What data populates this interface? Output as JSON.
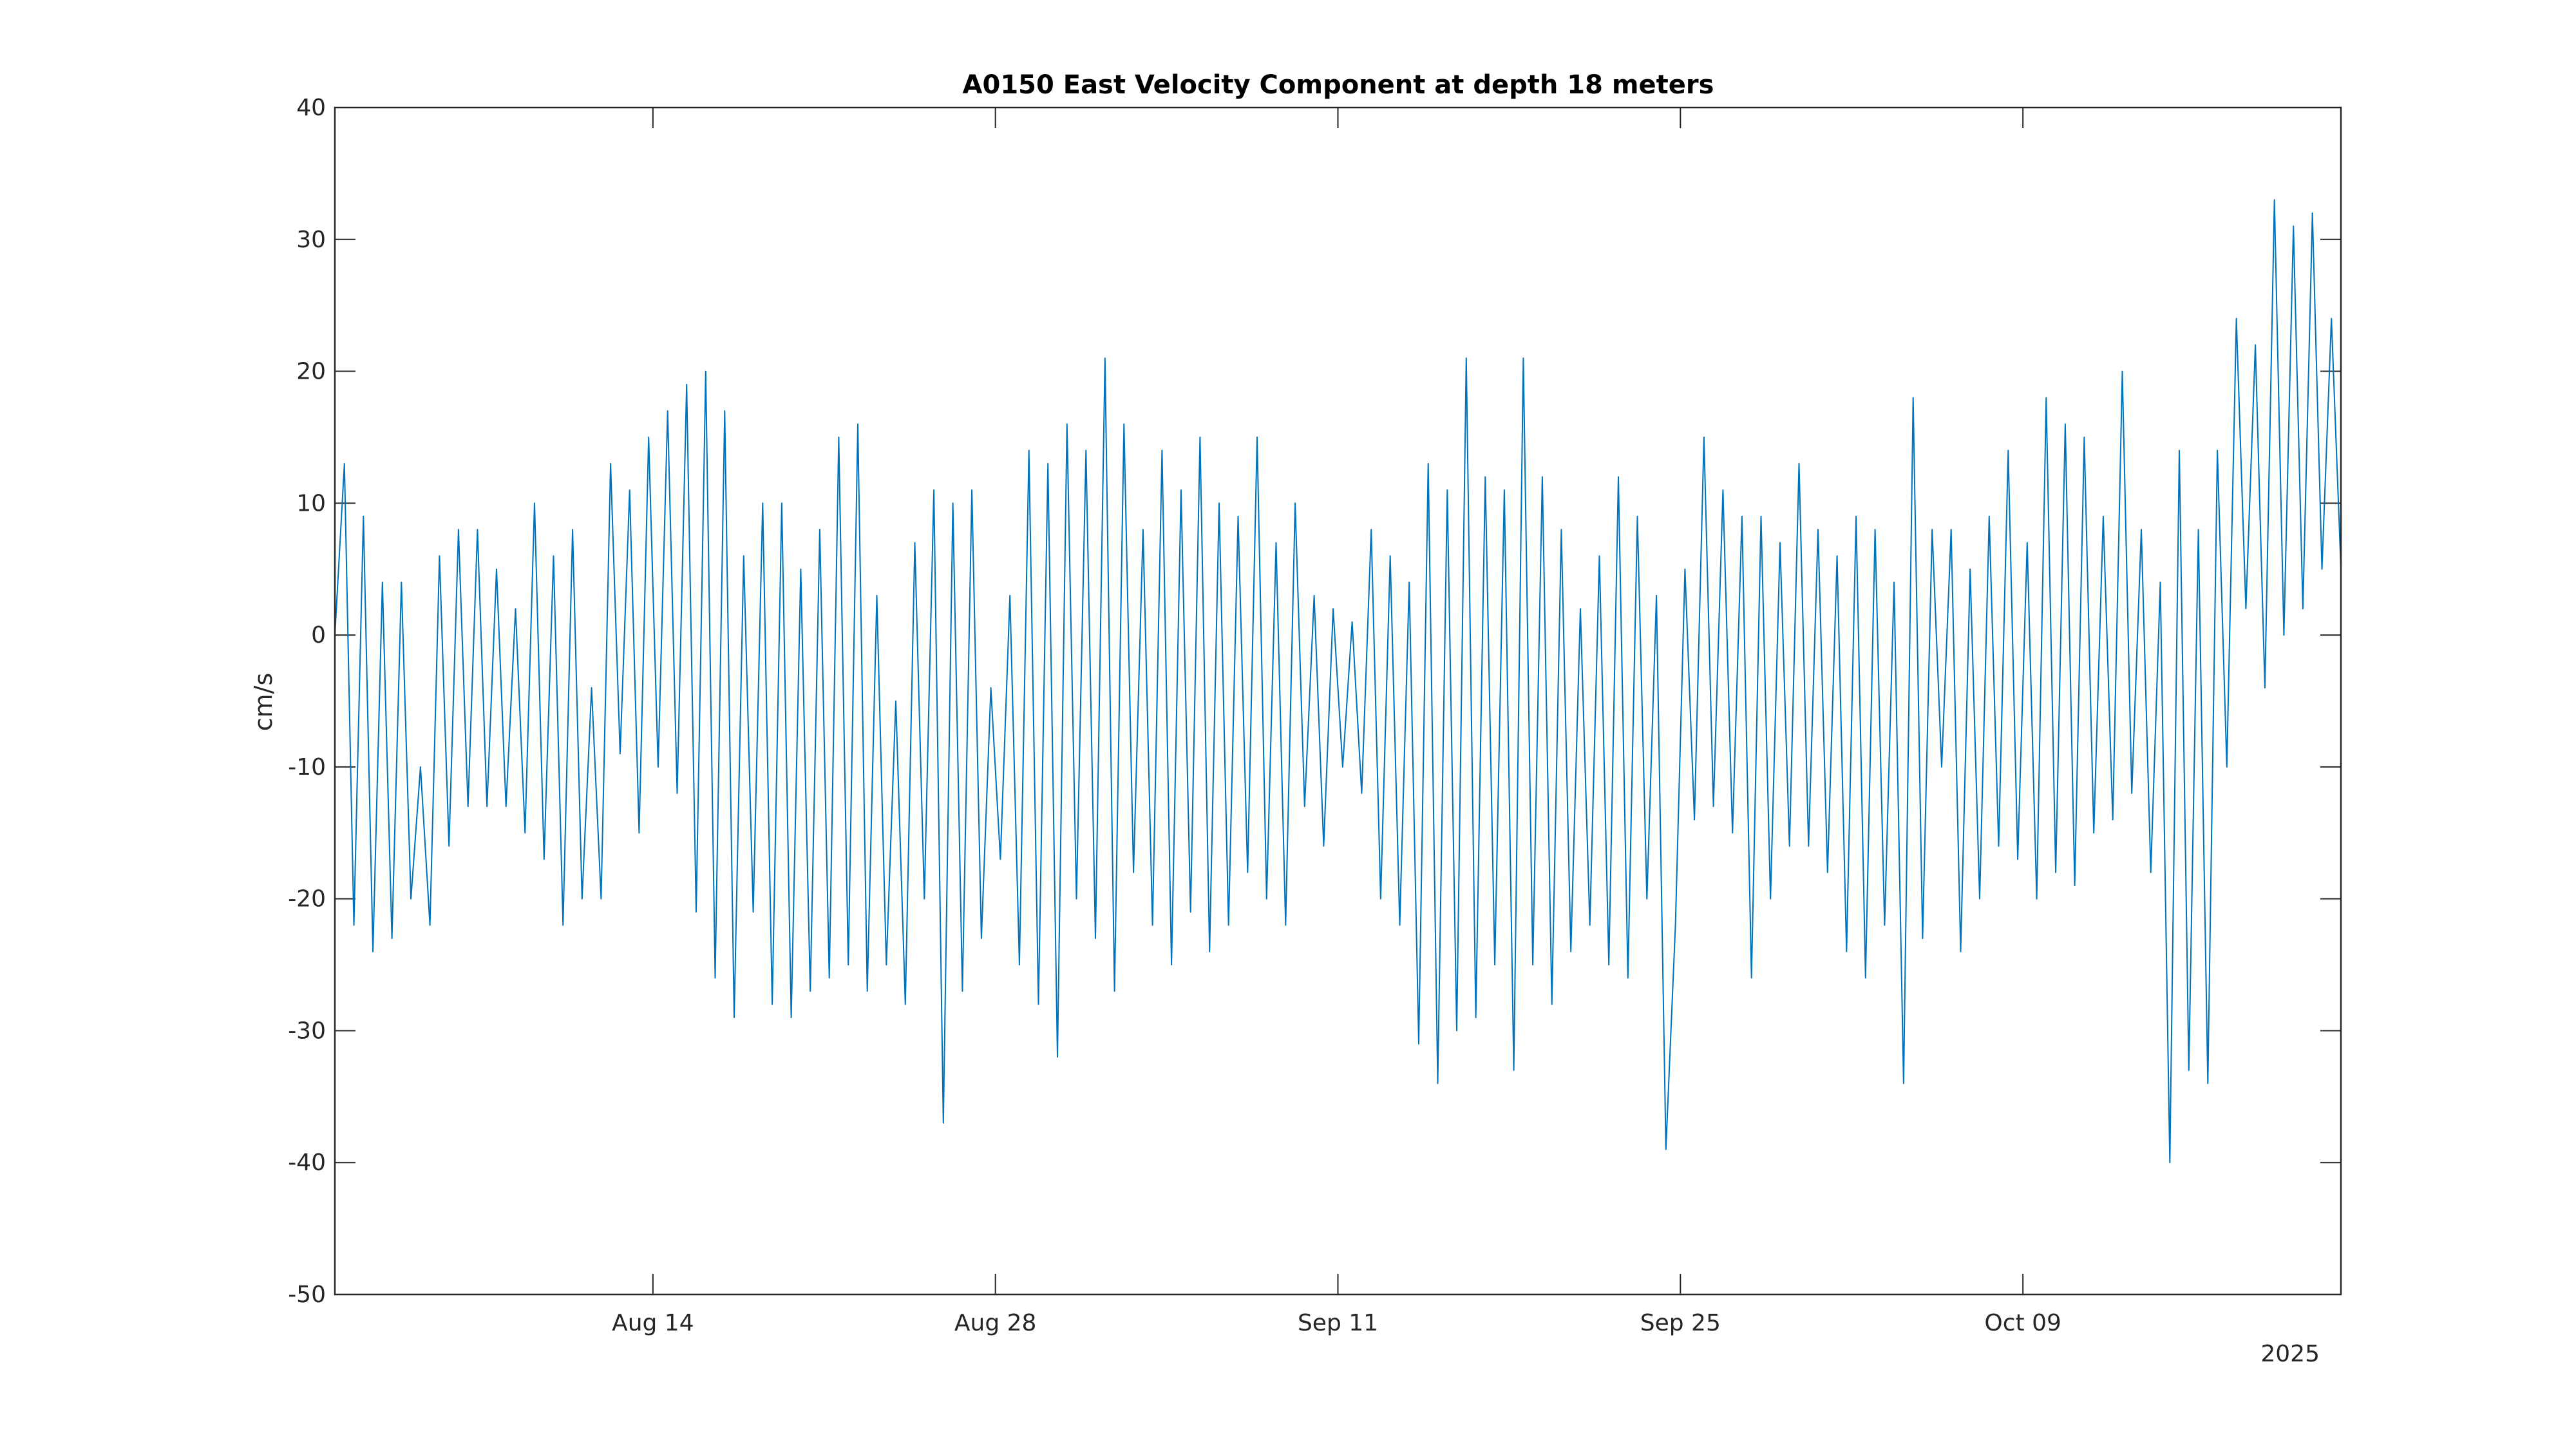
{
  "chart_data": {
    "type": "line",
    "title": "A0150 East Velocity Component at depth 18 meters",
    "xlabel": "",
    "ylabel": "cm/s",
    "year_label": "2025",
    "x_start": "2025-08-01",
    "x_end": "2025-10-22",
    "x_range_days": [
      0,
      82
    ],
    "x_ticks": [
      {
        "label": "Aug 14",
        "day": 13
      },
      {
        "label": "Aug 28",
        "day": 27
      },
      {
        "label": "Sep 11",
        "day": 41
      },
      {
        "label": "Sep 25",
        "day": 55
      },
      {
        "label": "Oct 09",
        "day": 69
      }
    ],
    "ylim": [
      -50,
      40
    ],
    "y_ticks": [
      40,
      30,
      20,
      10,
      0,
      -10,
      -20,
      -30,
      -40,
      -50
    ],
    "grid": false,
    "line_color": "#0072BD",
    "series": [
      {
        "name": "East velocity",
        "values": [
          0,
          13,
          -22,
          9,
          -24,
          4,
          -23,
          4,
          -20,
          -10,
          -22,
          6,
          -16,
          8,
          -13,
          8,
          -13,
          5,
          -13,
          2,
          -15,
          10,
          -17,
          6,
          -22,
          8,
          -20,
          -4,
          -20,
          13,
          -9,
          11,
          -15,
          15,
          -10,
          17,
          -12,
          19,
          -21,
          20,
          -26,
          17,
          -29,
          6,
          -21,
          10,
          -28,
          10,
          -29,
          5,
          -27,
          8,
          -26,
          15,
          -25,
          16,
          -27,
          3,
          -25,
          -5,
          -28,
          7,
          -20,
          11,
          -37,
          10,
          -27,
          11,
          -23,
          -4,
          -17,
          3,
          -25,
          14,
          -28,
          13,
          -32,
          16,
          -20,
          14,
          -23,
          21,
          -27,
          16,
          -18,
          8,
          -22,
          14,
          -25,
          11,
          -21,
          15,
          -24,
          10,
          -22,
          9,
          -18,
          15,
          -20,
          7,
          -22,
          10,
          -13,
          3,
          -16,
          2,
          -10,
          1,
          -12,
          8,
          -20,
          6,
          -22,
          4,
          -31,
          13,
          -34,
          11,
          -30,
          21,
          -29,
          12,
          -25,
          11,
          -33,
          21,
          -25,
          12,
          -28,
          8,
          -24,
          2,
          -22,
          6,
          -25,
          12,
          -26,
          9,
          -20,
          3,
          -39,
          -22,
          5,
          -14,
          15,
          -13,
          11,
          -15,
          9,
          -26,
          9,
          -20,
          7,
          -16,
          13,
          -16,
          8,
          -18,
          6,
          -24,
          9,
          -26,
          8,
          -22,
          4,
          -34,
          18,
          -23,
          8,
          -10,
          8,
          -24,
          5,
          -20,
          9,
          -16,
          14,
          -17,
          7,
          -20,
          18,
          -18,
          16,
          -19,
          15,
          -15,
          9,
          -14,
          20,
          -12,
          8,
          -18,
          4,
          -40,
          14,
          -33,
          8,
          -34,
          14,
          -10,
          24,
          2,
          22,
          -4,
          33,
          0,
          31,
          2,
          32,
          5,
          24,
          5
        ]
      }
    ]
  }
}
